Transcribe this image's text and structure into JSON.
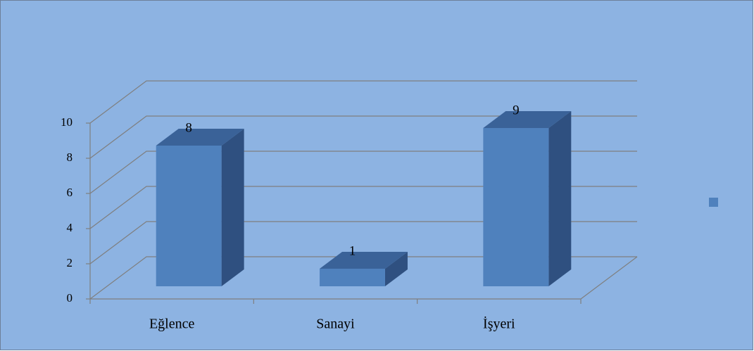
{
  "chart_data": {
    "type": "bar3d",
    "categories": [
      "Eğlence",
      "Sanayi",
      "İşyeri"
    ],
    "values": [
      8,
      1,
      9
    ],
    "color": "#4f81bd",
    "ylim": [
      0,
      10
    ],
    "yticks": [
      0,
      2,
      4,
      6,
      8,
      10
    ],
    "grid": true,
    "legend": "right"
  }
}
